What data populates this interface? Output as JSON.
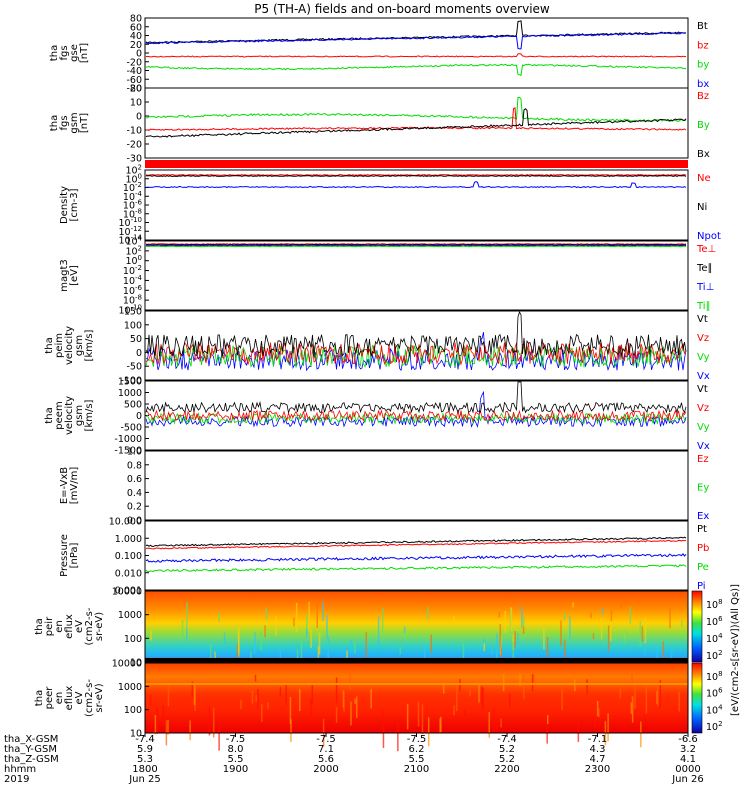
{
  "title": "P5 (TH-A) fields and on-board moments overview",
  "colors": {
    "black": "#000000",
    "red": "#ff0000",
    "green": "#00dd00",
    "blue": "#0000ff"
  },
  "colorbar_label": "[eV/(cm2-s[sr-eV])(All Qs)]",
  "chart_data": [
    {
      "type": "line",
      "panel": "fgs-btot",
      "ylabel": [
        "tha",
        "fgs",
        "gse",
        "[nT]"
      ],
      "ytick_labels": [
        "80",
        "60",
        "40",
        "20",
        "0",
        "-20",
        "-40",
        "-60",
        "-80"
      ],
      "legend": [
        {
          "label": "Bt",
          "color": "black"
        },
        {
          "label": "bz",
          "color": "red"
        },
        {
          "label": "by",
          "color": "green"
        },
        {
          "label": "bx",
          "color": "blue"
        }
      ]
    },
    {
      "type": "line",
      "panel": "fgs-gsm",
      "ylabel": [
        "tha",
        "fgs",
        "gsm",
        "[nT]"
      ],
      "ytick_labels": [
        "20",
        "10",
        "0",
        "-10",
        "-20",
        "-30"
      ],
      "legend": [
        {
          "label": "Bz",
          "color": "red"
        },
        {
          "label": "By",
          "color": "green"
        },
        {
          "label": "Bx",
          "color": "black"
        }
      ]
    },
    {
      "type": "line",
      "panel": "density",
      "ylabel": [
        "Density",
        "[cm-3]"
      ],
      "ytick_labels": [
        "10^2",
        "10^0",
        "10^-2",
        "10^-4",
        "10^-6",
        "10^-8",
        "10^-10",
        "10^-12",
        "10^-14"
      ],
      "legend": [
        {
          "label": "Ne",
          "color": "red"
        },
        {
          "label": "Ni",
          "color": "black"
        },
        {
          "label": "Npot",
          "color": "blue"
        }
      ]
    },
    {
      "type": "line",
      "panel": "temperature",
      "ylabel": [
        "magt3",
        "[eV]"
      ],
      "ytick_labels": [
        "10^4",
        "10^2",
        "10^0",
        "10^-2",
        "10^-4",
        "10^-6",
        "10^-8",
        "10^-10"
      ],
      "legend": [
        {
          "label": "Te⊥",
          "color": "red"
        },
        {
          "label": "Te∥",
          "color": "black"
        },
        {
          "label": "Ti⊥",
          "color": "blue"
        },
        {
          "label": "Ti∥",
          "color": "green"
        }
      ]
    },
    {
      "type": "line",
      "panel": "peim-velocity",
      "ylabel": [
        "tha",
        "peim",
        "velocity",
        "gsm",
        "[km/s]"
      ],
      "ytick_labels": [
        "150",
        "100",
        "50",
        "0",
        "-50",
        "-100"
      ],
      "legend": [
        {
          "label": "Vt",
          "color": "black"
        },
        {
          "label": "Vz",
          "color": "red"
        },
        {
          "label": "Vy",
          "color": "green"
        },
        {
          "label": "Vx",
          "color": "blue"
        }
      ]
    },
    {
      "type": "line",
      "panel": "peem-velocity",
      "ylabel": [
        "tha",
        "peem",
        "velocity",
        "gsm",
        "[km/s]"
      ],
      "ytick_labels": [
        "1500",
        "1000",
        "500",
        "0",
        "-500",
        "-1000",
        "-1500"
      ],
      "legend": [
        {
          "label": "Vt",
          "color": "black"
        },
        {
          "label": "Vz",
          "color": "red"
        },
        {
          "label": "Vy",
          "color": "green"
        },
        {
          "label": "Vx",
          "color": "blue"
        }
      ]
    },
    {
      "type": "line",
      "panel": "efield",
      "ylabel": [
        "E=-VxB",
        "[mV/m]"
      ],
      "ytick_labels": [
        "1.0",
        "0.8",
        "0.6",
        "0.4",
        "0.2",
        "0.0"
      ],
      "legend": [
        {
          "label": "Ez",
          "color": "red"
        },
        {
          "label": "Ey",
          "color": "green"
        },
        {
          "label": "Ex",
          "color": "blue"
        }
      ]
    },
    {
      "type": "line",
      "panel": "pressure",
      "ylabel": [
        "Pressure",
        "[nPa]"
      ],
      "ytick_labels": [
        "10.000",
        "1.000",
        "0.100",
        "0.010",
        "0.001"
      ],
      "legend": [
        {
          "label": "Pt",
          "color": "black"
        },
        {
          "label": "Pb",
          "color": "red"
        },
        {
          "label": "Pe",
          "color": "green"
        },
        {
          "label": "Pi",
          "color": "blue"
        }
      ]
    },
    {
      "type": "heatmap",
      "panel": "peir-spectrogram",
      "ylabel": [
        "tha",
        "peir",
        "en",
        "eflux",
        "eV",
        "(cm2-s-",
        "sr-eV)"
      ],
      "ytick_labels": [
        "10000",
        "1000",
        "100",
        "10"
      ],
      "colorbar_ticks": [
        "10^8",
        "10^6",
        "10^4",
        "10^2"
      ]
    },
    {
      "type": "heatmap",
      "panel": "peer-spectrogram",
      "ylabel": [
        "tha",
        "peer",
        "en",
        "eflux",
        "eV",
        "(cm2-s-",
        "sr-eV)"
      ],
      "ytick_labels": [
        "10000",
        "1000",
        "100",
        "10"
      ],
      "colorbar_ticks": [
        "10^8",
        "10^6",
        "10^4",
        "10^2"
      ]
    }
  ],
  "xaxis": {
    "row_labels": [
      "tha_X-GSM",
      "tha_Y-GSM",
      "tha_Z-GSM",
      "hhmm",
      "2019"
    ],
    "columns": [
      {
        "x": "-7.4",
        "y": "5.9",
        "z": "5.3",
        "hhmm": "1800",
        "date": "Jun 25"
      },
      {
        "x": "-7.5",
        "y": "8.0",
        "z": "5.5",
        "hhmm": "1900",
        "date": ""
      },
      {
        "x": "-7.5",
        "y": "7.1",
        "z": "5.6",
        "hhmm": "2000",
        "date": ""
      },
      {
        "x": "-7.5",
        "y": "6.2",
        "z": "5.5",
        "hhmm": "2100",
        "date": ""
      },
      {
        "x": "-7.4",
        "y": "5.2",
        "z": "5.2",
        "hhmm": "2200",
        "date": ""
      },
      {
        "x": "-7.1",
        "y": "4.3",
        "z": "4.7",
        "hhmm": "2300",
        "date": ""
      },
      {
        "x": "-6.6",
        "y": "3.2",
        "z": "4.1",
        "hhmm": "0000",
        "date": "Jun 26"
      }
    ]
  }
}
